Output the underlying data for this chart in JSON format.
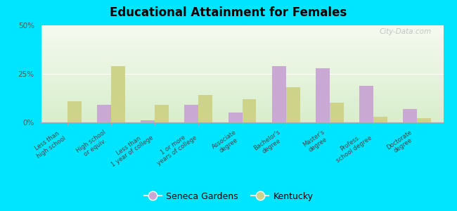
{
  "title": "Educational Attainment for Females",
  "categories": [
    "Less than\nhigh school",
    "High school\nor equiv.",
    "Less than\n1 year of college",
    "1 or more\nyears of college",
    "Associate\ndegree",
    "Bachelor's\ndegree",
    "Master's\ndegree",
    "Profess.\nschool degree",
    "Doctorate\ndegree"
  ],
  "seneca_gardens": [
    0.0,
    9.0,
    1.0,
    9.0,
    5.0,
    29.0,
    28.0,
    19.0,
    7.0
  ],
  "kentucky": [
    11.0,
    29.0,
    9.0,
    14.0,
    12.0,
    18.0,
    10.0,
    3.0,
    2.0
  ],
  "color_sg": "#c9a8d4",
  "color_ky": "#cdd48a",
  "ylim": [
    0,
    50
  ],
  "yticks": [
    0,
    25,
    50
  ],
  "ytick_labels": [
    "0%",
    "25%",
    "50%"
  ],
  "bg_top": "#f5faf0",
  "bg_bottom": "#d8eecc",
  "outer_background": "#00e5ff",
  "legend_sg": "Seneca Gardens",
  "legend_ky": "Kentucky",
  "watermark": "City-Data.com"
}
